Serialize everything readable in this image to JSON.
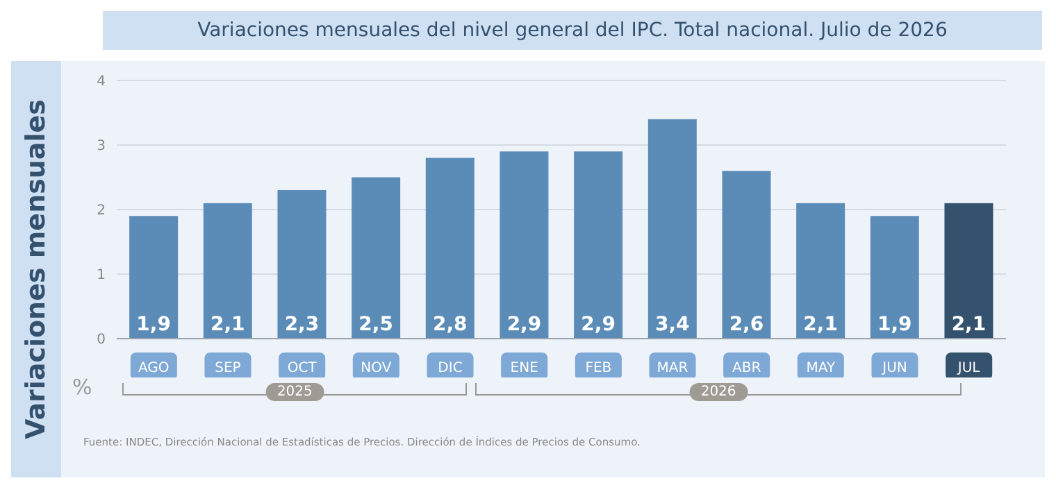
{
  "chart_data": {
    "type": "bar",
    "title": "Variaciones mensuales del nivel general del IPC. Total nacional. Julio de 2026",
    "ylabel": "Variaciones mensuales",
    "categories": [
      "AGO",
      "SEP",
      "OCT",
      "NOV",
      "DIC",
      "ENE",
      "FEB",
      "MAR",
      "ABR",
      "MAY",
      "JUN",
      "JUL"
    ],
    "values": [
      1.9,
      2.1,
      2.3,
      2.5,
      2.8,
      2.9,
      2.9,
      3.4,
      2.6,
      2.1,
      1.9,
      2.1
    ],
    "value_labels": [
      "1,9",
      "2,1",
      "2,3",
      "2,5",
      "2,8",
      "2,9",
      "2,9",
      "3,4",
      "2,6",
      "2,1",
      "1,9",
      "2,1"
    ],
    "colors": [
      "#5b8cb8",
      "#5b8cb8",
      "#5b8cb8",
      "#5b8cb8",
      "#5b8cb8",
      "#5b8cb8",
      "#5b8cb8",
      "#5b8cb8",
      "#5b8cb8",
      "#5b8cb8",
      "#5b8cb8",
      "#34516e"
    ],
    "ylim": [
      0,
      4
    ],
    "yticks": [
      0,
      1,
      2,
      3,
      4
    ],
    "grid": "y",
    "annotations": [
      "%",
      "2025",
      "2026",
      "Fuente: INDEC, Dirección Nacional de Estadísticas de Precios. Dirección de Índices de Precios de Consumo."
    ]
  }
}
